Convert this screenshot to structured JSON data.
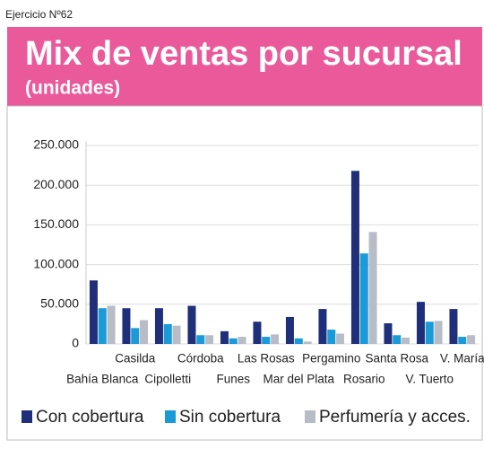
{
  "exercise": "Ejercicio Nº62",
  "chart_data": {
    "type": "bar",
    "title": "Mix de ventas por sucursal",
    "subtitle": "(unidades)",
    "categories": [
      "Bahía Blanca",
      "Casilda",
      "Cipolletti",
      "Córdoba",
      "Funes",
      "Las Rosas",
      "Mar del Plata",
      "Pergamino",
      "Rosario",
      "Santa Rosa",
      "V. Tuerto",
      "V. María"
    ],
    "series": [
      {
        "name": "Con cobertura",
        "color": "#1f2f7a",
        "values": [
          80000,
          45000,
          45000,
          48000,
          16000,
          28000,
          34000,
          44000,
          218000,
          26000,
          53000,
          44000
        ]
      },
      {
        "name": "Sin cobertura",
        "color": "#1a9ad6",
        "values": [
          45000,
          20000,
          25000,
          11000,
          7000,
          9000,
          7000,
          18000,
          114000,
          11000,
          28000,
          9000
        ]
      },
      {
        "name": "Perfumería y acces.",
        "color": "#b8bcc6",
        "values": [
          48000,
          30000,
          23000,
          11000,
          9000,
          12000,
          3000,
          13000,
          141000,
          8000,
          29000,
          11000
        ]
      }
    ],
    "ylim": [
      0,
      250000
    ],
    "yticks": [
      0,
      {
        "value": 50000,
        "label": "50.000"
      },
      {
        "value": 100000,
        "label": "100.000"
      },
      {
        "value": 150000,
        "label": "150.000"
      },
      {
        "value": 200000,
        "label": "200.000"
      },
      {
        "value": 250000,
        "label": "250.000"
      }
    ],
    "grid": true
  }
}
